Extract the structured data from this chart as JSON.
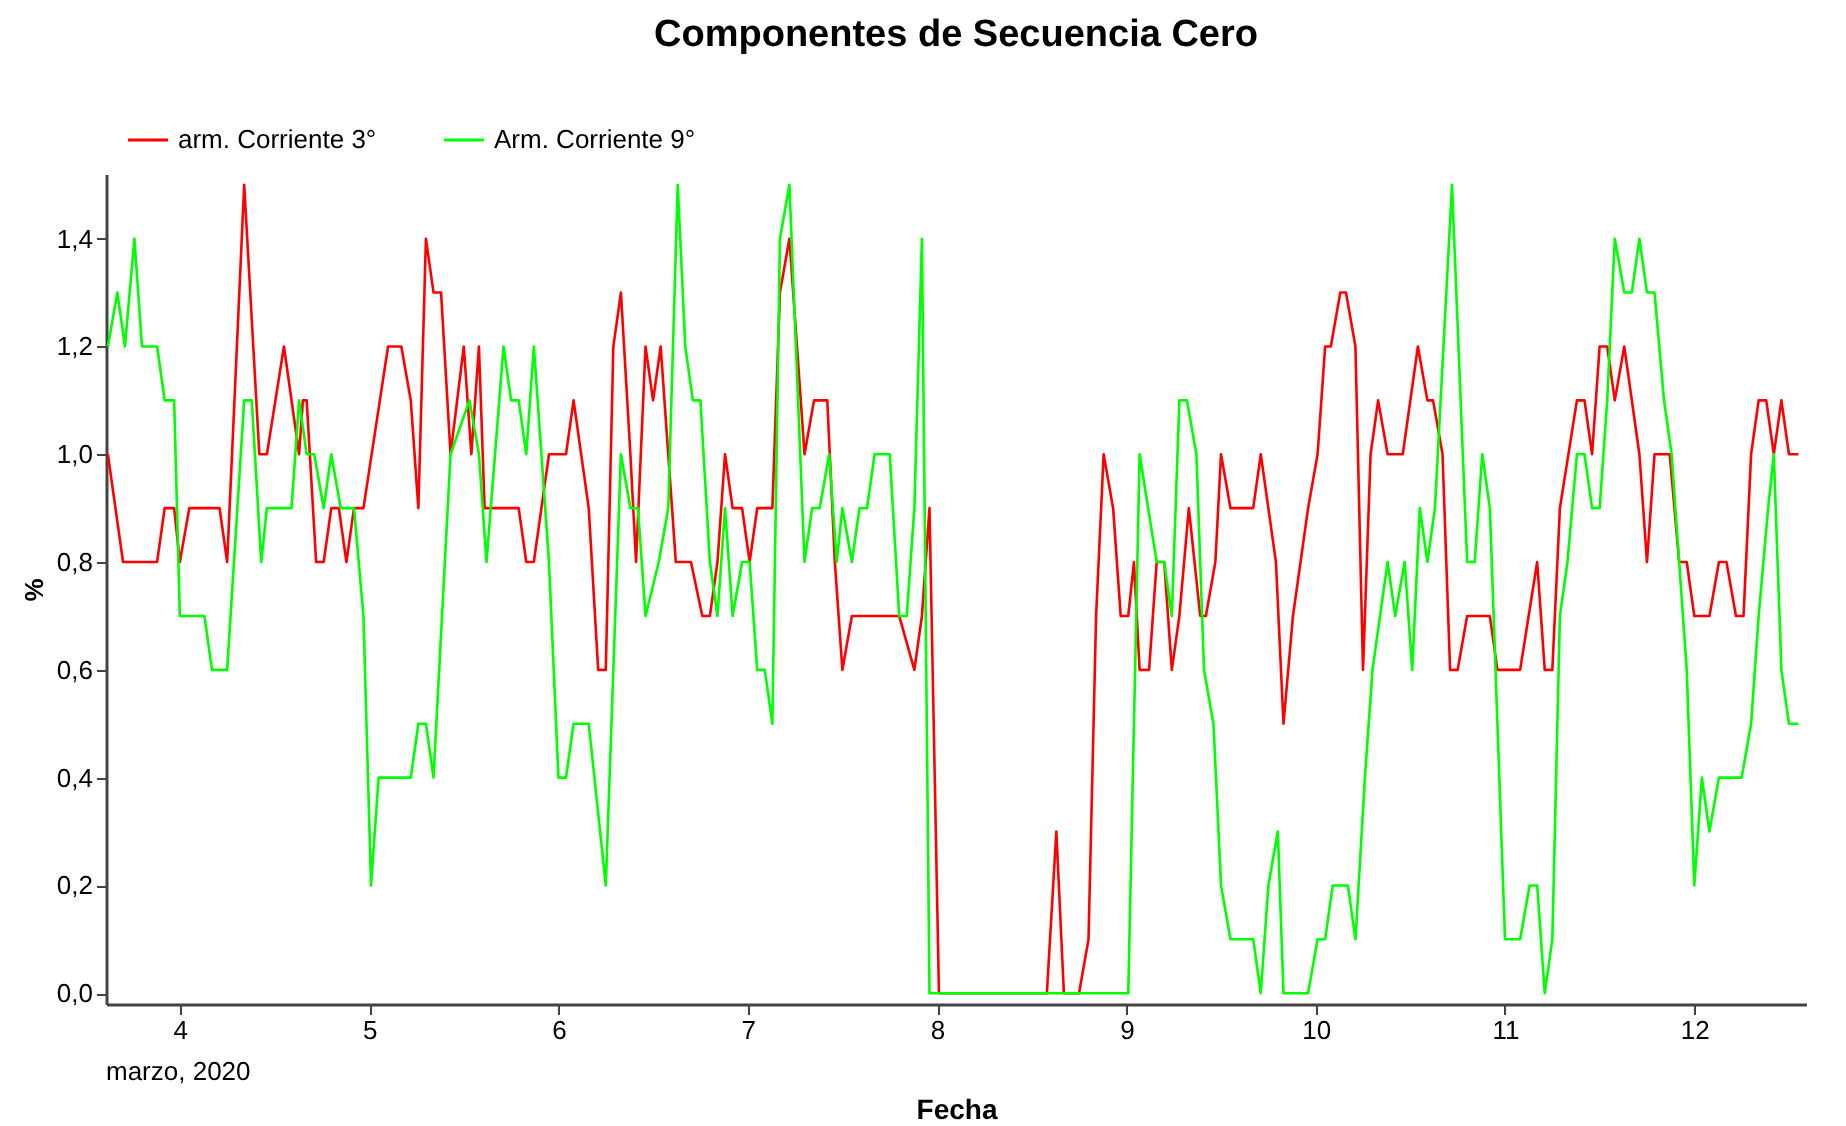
{
  "chart_data": {
    "type": "line",
    "title": "Componentes de Secuencia Cero",
    "xlabel": "Fecha",
    "ylabel": "%",
    "legend": "top left",
    "grid": false,
    "marker": "none",
    "line_style": "solid",
    "annotations": [
      "marzo, 2020"
    ],
    "xlim": [
      3.61,
      12.59
    ],
    "xticks": [
      4,
      5,
      6,
      7,
      8,
      9,
      10,
      11,
      12
    ],
    "ylim": [
      -0.02,
      1.52
    ],
    "yticks": [
      {
        "value": 0,
        "label": "0,0"
      },
      {
        "value": 0.2,
        "label": "0,2"
      },
      {
        "value": 0.4,
        "label": "0,4"
      },
      {
        "value": 0.6,
        "label": "0,6"
      },
      {
        "value": 0.8,
        "label": "0,8"
      },
      {
        "value": 1.0,
        "label": "1,0"
      },
      {
        "value": 1.2,
        "label": "1,2"
      },
      {
        "value": 1.4,
        "label": "1,4"
      }
    ],
    "series": [
      {
        "name": "arm. Corriente 3°",
        "color": "#ff0000",
        "x": [
          3.62,
          3.7,
          3.88,
          3.92,
          3.97,
          4.0,
          4.05,
          4.21,
          4.25,
          4.34,
          4.42,
          4.46,
          4.55,
          4.63,
          4.65,
          4.67,
          4.72,
          4.76,
          4.8,
          4.84,
          4.88,
          4.92,
          4.97,
          5.1,
          5.17,
          5.22,
          5.26,
          5.3,
          5.34,
          5.38,
          5.43,
          5.5,
          5.54,
          5.58,
          5.61,
          5.79,
          5.83,
          5.87,
          5.95,
          6.04,
          6.08,
          6.16,
          6.21,
          6.25,
          6.29,
          6.33,
          6.38,
          6.41,
          6.46,
          6.5,
          6.54,
          6.62,
          6.7,
          6.76,
          6.8,
          6.84,
          6.88,
          6.92,
          6.97,
          7.01,
          7.05,
          7.13,
          7.17,
          7.22,
          7.3,
          7.35,
          7.42,
          7.46,
          7.5,
          7.55,
          7.8,
          7.88,
          7.92,
          7.96,
          8.01,
          8.58,
          8.63,
          8.67,
          8.75,
          8.8,
          8.84,
          8.88,
          8.93,
          8.97,
          9.01,
          9.04,
          9.07,
          9.12,
          9.16,
          9.2,
          9.24,
          9.28,
          9.33,
          9.39,
          9.42,
          9.47,
          9.5,
          9.55,
          9.67,
          9.71,
          9.79,
          9.83,
          9.88,
          9.96,
          10.01,
          10.05,
          10.08,
          10.13,
          10.16,
          10.21,
          10.25,
          10.29,
          10.33,
          10.38,
          10.46,
          10.54,
          10.59,
          10.62,
          10.67,
          10.71,
          10.75,
          10.8,
          10.92,
          10.96,
          11.08,
          11.17,
          11.21,
          11.25,
          11.29,
          11.38,
          11.42,
          11.46,
          11.5,
          11.54,
          11.58,
          11.63,
          11.71,
          11.75,
          11.79,
          11.87,
          11.92,
          11.96,
          12.0,
          12.08,
          12.13,
          12.17,
          12.22,
          12.26,
          12.3,
          12.34,
          12.38,
          12.42,
          12.46,
          12.5,
          12.55
        ],
        "values": [
          1.0,
          0.8,
          0.8,
          0.9,
          0.9,
          0.8,
          0.9,
          0.9,
          0.8,
          1.5,
          1.0,
          1.0,
          1.2,
          1.0,
          1.1,
          1.1,
          0.8,
          0.8,
          0.9,
          0.9,
          0.8,
          0.9,
          0.9,
          1.2,
          1.2,
          1.1,
          0.9,
          1.4,
          1.3,
          1.3,
          1.0,
          1.2,
          1.0,
          1.2,
          0.9,
          0.9,
          0.8,
          0.8,
          1.0,
          1.0,
          1.1,
          0.9,
          0.6,
          0.6,
          1.2,
          1.3,
          1.0,
          0.8,
          1.2,
          1.1,
          1.2,
          0.8,
          0.8,
          0.7,
          0.7,
          0.8,
          1.0,
          0.9,
          0.9,
          0.8,
          0.9,
          0.9,
          1.3,
          1.4,
          1.0,
          1.1,
          1.1,
          0.8,
          0.6,
          0.7,
          0.7,
          0.6,
          0.7,
          0.9,
          0.0,
          0.0,
          0.3,
          0.0,
          0.0,
          0.1,
          0.7,
          1.0,
          0.9,
          0.7,
          0.7,
          0.8,
          0.6,
          0.6,
          0.8,
          0.8,
          0.6,
          0.7,
          0.9,
          0.7,
          0.7,
          0.8,
          1.0,
          0.9,
          0.9,
          1.0,
          0.8,
          0.5,
          0.7,
          0.9,
          1.0,
          1.2,
          1.2,
          1.3,
          1.3,
          1.2,
          0.6,
          1.0,
          1.1,
          1.0,
          1.0,
          1.2,
          1.1,
          1.1,
          1.0,
          0.6,
          0.6,
          0.7,
          0.7,
          0.6,
          0.6,
          0.8,
          0.6,
          0.6,
          0.9,
          1.1,
          1.1,
          1.0,
          1.2,
          1.2,
          1.1,
          1.2,
          1.0,
          0.8,
          1.0,
          1.0,
          0.8,
          0.8,
          0.7,
          0.7,
          0.8,
          0.8,
          0.7,
          0.7,
          1.0,
          1.1,
          1.1,
          1.0,
          1.1,
          1.0,
          1.0
        ]
      },
      {
        "name": "Arm. Corriente 9°",
        "color": "#00ff00",
        "x": [
          3.62,
          3.67,
          3.71,
          3.76,
          3.8,
          3.88,
          3.92,
          3.97,
          4.0,
          4.13,
          4.17,
          4.25,
          4.34,
          4.38,
          4.43,
          4.46,
          4.59,
          4.63,
          4.67,
          4.71,
          4.76,
          4.8,
          4.85,
          4.92,
          4.97,
          5.01,
          5.05,
          5.22,
          5.26,
          5.3,
          5.34,
          5.43,
          5.53,
          5.58,
          5.62,
          5.71,
          5.75,
          5.79,
          5.83,
          5.87,
          5.95,
          6.0,
          6.04,
          6.08,
          6.16,
          6.25,
          6.33,
          6.38,
          6.42,
          6.46,
          6.53,
          6.58,
          6.63,
          6.67,
          6.71,
          6.75,
          6.8,
          6.84,
          6.88,
          6.92,
          6.97,
          7.01,
          7.05,
          7.09,
          7.13,
          7.17,
          7.22,
          7.3,
          7.34,
          7.38,
          7.43,
          7.47,
          7.5,
          7.55,
          7.59,
          7.63,
          7.67,
          7.75,
          7.8,
          7.84,
          7.88,
          7.92,
          7.96,
          9.01,
          9.07,
          9.16,
          9.2,
          9.24,
          9.28,
          9.32,
          9.37,
          9.41,
          9.46,
          9.5,
          9.55,
          9.67,
          9.71,
          9.75,
          9.8,
          9.83,
          9.96,
          10.01,
          10.05,
          10.09,
          10.17,
          10.21,
          10.26,
          10.3,
          10.38,
          10.42,
          10.47,
          10.51,
          10.55,
          10.59,
          10.63,
          10.72,
          10.8,
          10.84,
          10.88,
          10.92,
          11.0,
          11.08,
          11.13,
          11.17,
          11.21,
          11.25,
          11.29,
          11.33,
          11.38,
          11.42,
          11.46,
          11.5,
          11.54,
          11.58,
          11.63,
          11.67,
          11.71,
          11.75,
          11.79,
          11.84,
          11.88,
          11.96,
          12.0,
          12.04,
          12.08,
          12.13,
          12.25,
          12.3,
          12.34,
          12.39,
          12.42,
          12.46,
          12.5,
          12.55
        ],
        "values": [
          1.2,
          1.3,
          1.2,
          1.4,
          1.2,
          1.2,
          1.1,
          1.1,
          0.7,
          0.7,
          0.6,
          0.6,
          1.1,
          1.1,
          0.8,
          0.9,
          0.9,
          1.1,
          1.0,
          1.0,
          0.9,
          1.0,
          0.9,
          0.9,
          0.7,
          0.2,
          0.4,
          0.4,
          0.5,
          0.5,
          0.4,
          1.0,
          1.1,
          1.0,
          0.8,
          1.2,
          1.1,
          1.1,
          1.0,
          1.2,
          0.8,
          0.4,
          0.4,
          0.5,
          0.5,
          0.2,
          1.0,
          0.9,
          0.9,
          0.7,
          0.8,
          0.9,
          1.5,
          1.2,
          1.1,
          1.1,
          0.8,
          0.7,
          0.9,
          0.7,
          0.8,
          0.8,
          0.6,
          0.6,
          0.5,
          1.4,
          1.5,
          0.8,
          0.9,
          0.9,
          1.0,
          0.8,
          0.9,
          0.8,
          0.9,
          0.9,
          1.0,
          1.0,
          0.7,
          0.7,
          0.9,
          1.4,
          0.0,
          0.0,
          1.0,
          0.8,
          0.8,
          0.7,
          1.1,
          1.1,
          1.0,
          0.6,
          0.5,
          0.2,
          0.1,
          0.1,
          0.0,
          0.2,
          0.3,
          0.0,
          0.0,
          0.1,
          0.1,
          0.2,
          0.2,
          0.1,
          0.4,
          0.6,
          0.8,
          0.7,
          0.8,
          0.6,
          0.9,
          0.8,
          0.9,
          1.5,
          0.8,
          0.8,
          1.0,
          0.9,
          0.1,
          0.1,
          0.2,
          0.2,
          0.0,
          0.1,
          0.7,
          0.8,
          1.0,
          1.0,
          0.9,
          0.9,
          1.1,
          1.4,
          1.3,
          1.3,
          1.4,
          1.3,
          1.3,
          1.1,
          1.0,
          0.6,
          0.2,
          0.4,
          0.3,
          0.4,
          0.4,
          0.5,
          0.7,
          0.9,
          1.0,
          0.6,
          0.5,
          0.5
        ]
      }
    ]
  }
}
